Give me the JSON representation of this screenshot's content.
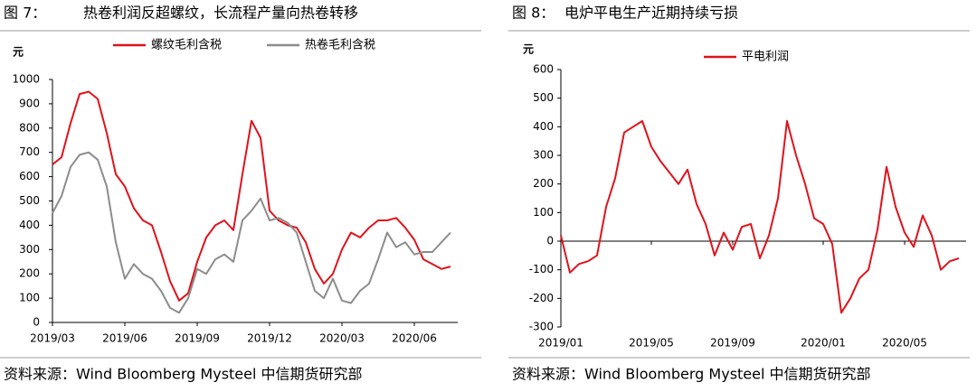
{
  "chart_data": [
    {
      "type": "line",
      "figure_label": "图 7：",
      "title": "热卷利润反超螺纹，长流程产量向热卷转移",
      "ylabel": "元",
      "footer": "资料来源：Wind Bloomberg Mysteel 中信期货研究部",
      "categories": [
        "2019/03",
        null,
        null,
        null,
        null,
        null,
        null,
        null,
        "2019/06",
        null,
        null,
        null,
        null,
        null,
        null,
        null,
        "2019/09",
        null,
        null,
        null,
        null,
        null,
        null,
        null,
        "2019/12",
        null,
        null,
        null,
        null,
        null,
        null,
        null,
        "2020/03",
        null,
        null,
        null,
        null,
        null,
        null,
        null,
        "2020/06",
        null,
        null,
        null,
        null
      ],
      "series": [
        {
          "name": "螺纹毛利含税",
          "color": "#e0121b",
          "values": [
            650,
            680,
            820,
            940,
            950,
            920,
            780,
            610,
            560,
            470,
            420,
            400,
            290,
            170,
            90,
            120,
            250,
            350,
            400,
            420,
            380,
            610,
            830,
            760,
            460,
            420,
            400,
            390,
            330,
            220,
            160,
            200,
            300,
            370,
            350,
            390,
            420,
            420,
            430,
            390,
            340,
            260,
            240,
            220,
            230
          ]
        },
        {
          "name": "热卷毛利含税",
          "color": "#8c8c8c",
          "values": [
            450,
            520,
            640,
            690,
            700,
            670,
            560,
            330,
            180,
            240,
            200,
            180,
            130,
            60,
            40,
            100,
            220,
            200,
            260,
            280,
            250,
            420,
            460,
            510,
            420,
            430,
            410,
            370,
            250,
            130,
            100,
            180,
            90,
            80,
            130,
            160,
            260,
            370,
            310,
            330,
            280,
            290,
            290,
            330,
            370
          ]
        }
      ],
      "ylim": [
        0,
        1000
      ],
      "yticks": [
        0,
        100,
        200,
        300,
        400,
        500,
        600,
        700,
        800,
        900,
        1000
      ],
      "grid": false
    },
    {
      "type": "line",
      "figure_label": "图 8：",
      "title": "电炉平电生产近期持续亏损",
      "ylabel": "元",
      "footer": "资料来源：Wind Bloomberg Mysteel 中信期货研究部",
      "categories": [
        "2019/01",
        null,
        null,
        null,
        null,
        null,
        null,
        null,
        null,
        null,
        "2019/05",
        null,
        null,
        null,
        null,
        null,
        null,
        null,
        null,
        "2019/09",
        null,
        null,
        null,
        null,
        null,
        null,
        null,
        null,
        null,
        "2020/01",
        null,
        null,
        null,
        null,
        null,
        null,
        null,
        null,
        "2020/05",
        null,
        null,
        null,
        null,
        null,
        null
      ],
      "series": [
        {
          "name": "平电利润",
          "color": "#e0121b",
          "values": [
            20,
            -110,
            -80,
            -70,
            -50,
            120,
            220,
            380,
            400,
            420,
            330,
            280,
            240,
            200,
            250,
            130,
            60,
            -50,
            30,
            -30,
            50,
            60,
            -60,
            20,
            150,
            420,
            300,
            200,
            80,
            60,
            -10,
            -250,
            -200,
            -130,
            -100,
            40,
            260,
            120,
            30,
            -20,
            90,
            20,
            -100,
            -70,
            -60
          ]
        }
      ],
      "ylim": [
        -300,
        600
      ],
      "yticks": [
        -300,
        -200,
        -100,
        0,
        100,
        200,
        300,
        400,
        500,
        600
      ],
      "grid": false
    }
  ]
}
